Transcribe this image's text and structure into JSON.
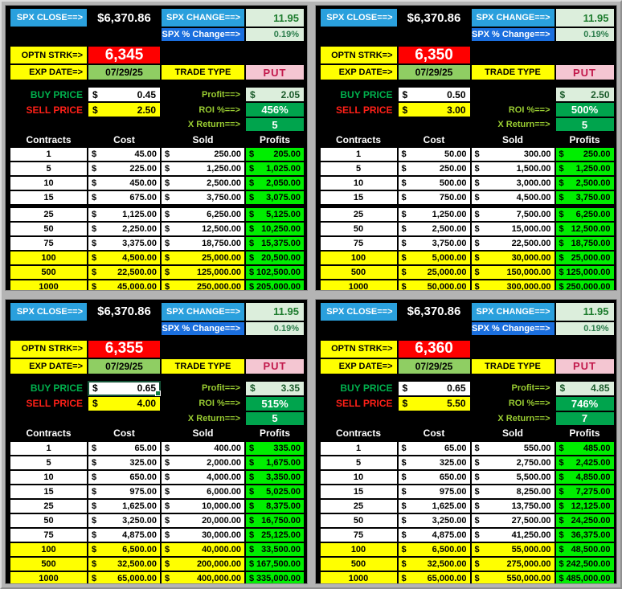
{
  "meta": {
    "currency": "$",
    "colors": {
      "cyan_label": "#2aa0dd",
      "blue_label": "#1b6fde",
      "yellow": "#ffff00",
      "strike_red": "#fe0000",
      "date_green": "#8fce63",
      "put_pink_bg": "#f4c6d2",
      "put_text": "#c2184b",
      "pale_green": "#dceedc",
      "roi_green": "#00a44d",
      "profit_green": "#00ee00",
      "panel_bg": "#000000",
      "page_bg": "#b4b4b4"
    }
  },
  "panels": [
    {
      "spx_close_label": "SPX CLOSE==>",
      "spx_close": "$6,370.86",
      "spx_change_label": "SPX CHANGE==>",
      "spx_change": "11.95",
      "spx_pct_label": "SPX % Change==>",
      "spx_pct": "0.19%",
      "strike_label": "OPTN STRK=>",
      "strike": "6,345",
      "exp_label": "EXP DATE=>",
      "exp_date": "07/29/25",
      "trade_type_label": "TRADE TYPE",
      "trade_type": "PUT",
      "buy_label": "BUY PRICE",
      "buy": "0.45",
      "sell_label": "SELL PRICE",
      "sell": "2.50",
      "profit_label": "Profit==>",
      "profit": "2.05",
      "roi_label": "ROI %==>",
      "roi": "456%",
      "xreturn_label": "X Return==>",
      "xreturn": "5",
      "buy_selected": false,
      "table": {
        "headers": [
          "Contracts",
          "Cost",
          "Sold",
          "Profits"
        ],
        "rows": [
          {
            "contracts": "1",
            "cost": "45.00",
            "sold": "250.00",
            "profit": "205.00",
            "highlight": false,
            "gap": false
          },
          {
            "contracts": "5",
            "cost": "225.00",
            "sold": "1,250.00",
            "profit": "1,025.00",
            "highlight": false,
            "gap": false
          },
          {
            "contracts": "10",
            "cost": "450.00",
            "sold": "2,500.00",
            "profit": "2,050.00",
            "highlight": false,
            "gap": false
          },
          {
            "contracts": "15",
            "cost": "675.00",
            "sold": "3,750.00",
            "profit": "3,075.00",
            "highlight": false,
            "gap": false
          },
          {
            "contracts": "25",
            "cost": "1,125.00",
            "sold": "6,250.00",
            "profit": "5,125.00",
            "highlight": false,
            "gap": true
          },
          {
            "contracts": "50",
            "cost": "2,250.00",
            "sold": "12,500.00",
            "profit": "10,250.00",
            "highlight": false,
            "gap": false
          },
          {
            "contracts": "75",
            "cost": "3,375.00",
            "sold": "18,750.00",
            "profit": "15,375.00",
            "highlight": false,
            "gap": false
          },
          {
            "contracts": "100",
            "cost": "4,500.00",
            "sold": "25,000.00",
            "profit": "20,500.00",
            "highlight": true,
            "gap": false
          },
          {
            "contracts": "500",
            "cost": "22,500.00",
            "sold": "125,000.00",
            "profit": "102,500.00",
            "highlight": true,
            "gap": false
          },
          {
            "contracts": "1000",
            "cost": "45,000.00",
            "sold": "250,000.00",
            "profit": "205,000.00",
            "highlight": true,
            "gap": false
          }
        ]
      }
    },
    {
      "spx_close_label": "SPX CLOSE==>",
      "spx_close": "$6,370.86",
      "spx_change_label": "SPX CHANGE==>",
      "spx_change": "11.95",
      "spx_pct_label": "SPX % Change==>",
      "spx_pct": "0.19%",
      "strike_label": "OPTN STRK=>",
      "strike": "6,350",
      "exp_label": "EXP DATE=>",
      "exp_date": "07/29/25",
      "trade_type_label": "TRADE TYPE",
      "trade_type": "PUT",
      "buy_label": "BUY PRICE",
      "buy": "0.50",
      "sell_label": "SELL PRICE",
      "sell": "3.00",
      "profit_label": "",
      "profit": "2.50",
      "roi_label": "ROI %==>",
      "roi": "500%",
      "xreturn_label": "X Return==>",
      "xreturn": "5",
      "buy_selected": false,
      "table": {
        "headers": [
          "Contracts",
          "Cost",
          "Sold",
          "Profits"
        ],
        "rows": [
          {
            "contracts": "1",
            "cost": "50.00",
            "sold": "300.00",
            "profit": "250.00",
            "highlight": false,
            "gap": false
          },
          {
            "contracts": "5",
            "cost": "250.00",
            "sold": "1,500.00",
            "profit": "1,250.00",
            "highlight": false,
            "gap": false
          },
          {
            "contracts": "10",
            "cost": "500.00",
            "sold": "3,000.00",
            "profit": "2,500.00",
            "highlight": false,
            "gap": false
          },
          {
            "contracts": "15",
            "cost": "750.00",
            "sold": "4,500.00",
            "profit": "3,750.00",
            "highlight": false,
            "gap": false
          },
          {
            "contracts": "25",
            "cost": "1,250.00",
            "sold": "7,500.00",
            "profit": "6,250.00",
            "highlight": false,
            "gap": true
          },
          {
            "contracts": "50",
            "cost": "2,500.00",
            "sold": "15,000.00",
            "profit": "12,500.00",
            "highlight": false,
            "gap": false
          },
          {
            "contracts": "75",
            "cost": "3,750.00",
            "sold": "22,500.00",
            "profit": "18,750.00",
            "highlight": false,
            "gap": false
          },
          {
            "contracts": "100",
            "cost": "5,000.00",
            "sold": "30,000.00",
            "profit": "25,000.00",
            "highlight": true,
            "gap": false
          },
          {
            "contracts": "500",
            "cost": "25,000.00",
            "sold": "150,000.00",
            "profit": "125,000.00",
            "highlight": true,
            "gap": false
          },
          {
            "contracts": "1000",
            "cost": "50,000.00",
            "sold": "300,000.00",
            "profit": "250,000.00",
            "highlight": true,
            "gap": false
          }
        ]
      }
    },
    {
      "spx_close_label": "SPX CLOSE==>",
      "spx_close": "$6,370.86",
      "spx_change_label": "SPX CHANGE==>",
      "spx_change": "11.95",
      "spx_pct_label": "SPX % Change==>",
      "spx_pct": "0.19%",
      "strike_label": "OPTN STRK=>",
      "strike": "6,355",
      "exp_label": "EXP DATE=>",
      "exp_date": "07/29/25",
      "trade_type_label": "TRADE TYPE",
      "trade_type": "PUT",
      "buy_label": "BUY PRICE",
      "buy": "0.65",
      "sell_label": "SELL PRICE",
      "sell": "4.00",
      "profit_label": "Profit==>",
      "profit": "3.35",
      "roi_label": "ROI %==>",
      "roi": "515%",
      "xreturn_label": "X Return==>",
      "xreturn": "5",
      "buy_selected": true,
      "table": {
        "headers": [
          "Contracts",
          "Cost",
          "Sold",
          "Profits"
        ],
        "rows": [
          {
            "contracts": "1",
            "cost": "65.00",
            "sold": "400.00",
            "profit": "335.00",
            "highlight": false,
            "gap": false
          },
          {
            "contracts": "5",
            "cost": "325.00",
            "sold": "2,000.00",
            "profit": "1,675.00",
            "highlight": false,
            "gap": false
          },
          {
            "contracts": "10",
            "cost": "650.00",
            "sold": "4,000.00",
            "profit": "3,350.00",
            "highlight": false,
            "gap": false
          },
          {
            "contracts": "15",
            "cost": "975.00",
            "sold": "6,000.00",
            "profit": "5,025.00",
            "highlight": false,
            "gap": false
          },
          {
            "contracts": "25",
            "cost": "1,625.00",
            "sold": "10,000.00",
            "profit": "8,375.00",
            "highlight": false,
            "gap": false
          },
          {
            "contracts": "50",
            "cost": "3,250.00",
            "sold": "20,000.00",
            "profit": "16,750.00",
            "highlight": false,
            "gap": false
          },
          {
            "contracts": "75",
            "cost": "4,875.00",
            "sold": "30,000.00",
            "profit": "25,125.00",
            "highlight": false,
            "gap": false
          },
          {
            "contracts": "100",
            "cost": "6,500.00",
            "sold": "40,000.00",
            "profit": "33,500.00",
            "highlight": true,
            "gap": false
          },
          {
            "contracts": "500",
            "cost": "32,500.00",
            "sold": "200,000.00",
            "profit": "167,500.00",
            "highlight": true,
            "gap": false
          },
          {
            "contracts": "1000",
            "cost": "65,000.00",
            "sold": "400,000.00",
            "profit": "335,000.00",
            "highlight": true,
            "gap": false
          }
        ]
      }
    },
    {
      "spx_close_label": "SPX CLOSE==>",
      "spx_close": "$6,370.86",
      "spx_change_label": "SPX CHANGE==>",
      "spx_change": "11.95",
      "spx_pct_label": "SPX % Change==>",
      "spx_pct": "0.19%",
      "strike_label": "OPTN STRK=>",
      "strike": "6,360",
      "exp_label": "EXP DATE=>",
      "exp_date": "07/29/25",
      "trade_type_label": "TRADE TYPE",
      "trade_type": "PUT",
      "buy_label": "BUY PRICE",
      "buy": "0.65",
      "sell_label": "SELL PRICE",
      "sell": "5.50",
      "profit_label": "Profit==>",
      "profit": "4.85",
      "roi_label": "ROI %==>",
      "roi": "746%",
      "xreturn_label": "X Return==>",
      "xreturn": "7",
      "buy_selected": false,
      "table": {
        "headers": [
          "Contracts",
          "Cost",
          "Sold",
          "Profits"
        ],
        "rows": [
          {
            "contracts": "1",
            "cost": "65.00",
            "sold": "550.00",
            "profit": "485.00",
            "highlight": false,
            "gap": false
          },
          {
            "contracts": "5",
            "cost": "325.00",
            "sold": "2,750.00",
            "profit": "2,425.00",
            "highlight": false,
            "gap": false
          },
          {
            "contracts": "10",
            "cost": "650.00",
            "sold": "5,500.00",
            "profit": "4,850.00",
            "highlight": false,
            "gap": false
          },
          {
            "contracts": "15",
            "cost": "975.00",
            "sold": "8,250.00",
            "profit": "7,275.00",
            "highlight": false,
            "gap": false
          },
          {
            "contracts": "25",
            "cost": "1,625.00",
            "sold": "13,750.00",
            "profit": "12,125.00",
            "highlight": false,
            "gap": false
          },
          {
            "contracts": "50",
            "cost": "3,250.00",
            "sold": "27,500.00",
            "profit": "24,250.00",
            "highlight": false,
            "gap": false
          },
          {
            "contracts": "75",
            "cost": "4,875.00",
            "sold": "41,250.00",
            "profit": "36,375.00",
            "highlight": false,
            "gap": false
          },
          {
            "contracts": "100",
            "cost": "6,500.00",
            "sold": "55,000.00",
            "profit": "48,500.00",
            "highlight": true,
            "gap": false
          },
          {
            "contracts": "500",
            "cost": "32,500.00",
            "sold": "275,000.00",
            "profit": "242,500.00",
            "highlight": true,
            "gap": false
          },
          {
            "contracts": "1000",
            "cost": "65,000.00",
            "sold": "550,000.00",
            "profit": "485,000.00",
            "highlight": true,
            "gap": false
          }
        ]
      }
    }
  ]
}
